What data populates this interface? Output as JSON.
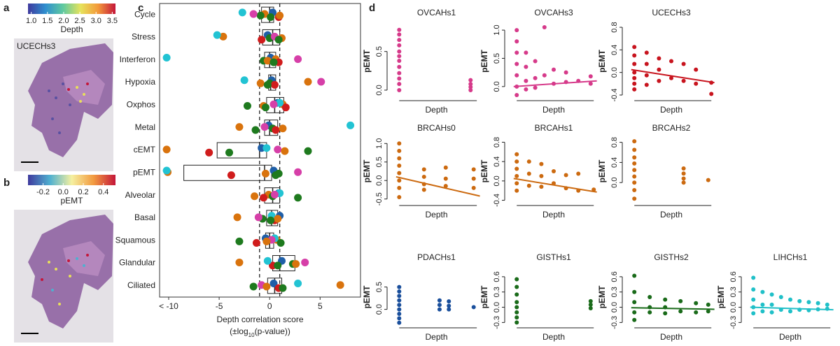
{
  "panel_labels": [
    "a",
    "b",
    "c",
    "d"
  ],
  "chart_data": [
    {
      "type": "colorbar",
      "title": "Depth",
      "image_label": "UCECHs3",
      "colors": [
        "#3f3a9e",
        "#2f8fcf",
        "#5fc9a0",
        "#e6e35c",
        "#f39a3a",
        "#c4163a"
      ],
      "xlim": [
        0.9,
        3.6
      ],
      "xticks": [
        {
          "value": 1,
          "label": "1.0"
        },
        1.5,
        {
          "value": 2,
          "label": "2.0"
        },
        2.5,
        {
          "value": 3,
          "label": "3.0"
        },
        3.5
      ]
    },
    {
      "type": "colorbar",
      "title": "pEMT",
      "colors": [
        "#3f3a9e",
        "#4fb0d0",
        "#f5f0a0",
        "#f29a40",
        "#c4163a"
      ],
      "xlim": [
        -0.35,
        0.52
      ],
      "xticks": [
        -0.2,
        {
          "value": 0,
          "label": "0.0"
        },
        0.2,
        0.4
      ]
    },
    {
      "type": "boxdot",
      "xlabel": "Depth correlation score",
      "xlabel_note": [
        "(±log",
        "10",
        "(p-value))"
      ],
      "categories": [
        "Cycle",
        "Stress",
        "Interferon",
        "Hypoxia",
        "Oxphos",
        "Metal",
        "cEMT",
        "pEMT",
        "Alveolar",
        "Basal",
        "Squamous",
        "Glandular",
        "Ciliated"
      ],
      "category_colors": [
        "#e8776e",
        "#d08c0c",
        "#c39a1b",
        "#98a61a",
        "#43a22a",
        "#1fae8a",
        "#1ab3b3",
        "#19a9de",
        "#29a0e0",
        "#8d93e0",
        "#c078e0",
        "#e060c0",
        "#e5609f"
      ],
      "xlim": [
        -10.9,
        9
      ],
      "xticks": [
        {
          "value": -10,
          "label": "< -10"
        },
        -5,
        0,
        5
      ],
      "ref_lines": [
        -1,
        1
      ],
      "boxes": [
        {
          "q1": -0.8,
          "median": 0,
          "q3": 0.4
        },
        {
          "q1": -0.7,
          "median": 0.3,
          "q3": 1.0
        },
        {
          "q1": -0.5,
          "median": 0,
          "q3": 0.6
        },
        {
          "q1": -0.1,
          "median": 0.1,
          "q3": 0.6
        },
        {
          "q1": -0.3,
          "median": 0.5,
          "q3": 1.4
        },
        {
          "q1": -0.5,
          "median": 0,
          "q3": 0.8
        },
        {
          "q1": -5.2,
          "median": -1.0,
          "q3": -0.3
        },
        {
          "q1": -8.5,
          "median": -0.5,
          "q3": 0.2
        },
        {
          "q1": -0.5,
          "median": 0.3,
          "q3": 1.0
        },
        {
          "q1": -0.3,
          "median": 0.2,
          "q3": 0.8
        },
        {
          "q1": -0.4,
          "median": 0,
          "q3": 0.4
        },
        {
          "q1": 0.3,
          "median": 1.0,
          "q3": 2.5
        },
        {
          "q1": -0.2,
          "median": 0.5,
          "q3": 1.2
        }
      ],
      "series": [
        {
          "color": "#1f5fa8",
          "values": [
            0.3,
            -0.2,
            0.1,
            0.2,
            0.8,
            -0.1,
            -0.8,
            0.4,
            0.9,
            1.0,
            -0.4,
            1.2,
            0.4
          ]
        },
        {
          "color": "#d9730d",
          "values": [
            -0.5,
            -4.6,
            0.6,
            3.8,
            1.3,
            -3.0,
            -10.2,
            -10.1,
            -0.1,
            -3.2,
            0.7,
            -3.0,
            7.0
          ]
        },
        {
          "color": "#1e7a1e",
          "values": [
            -0.9,
            0,
            -0.6,
            0,
            -2.2,
            0.3,
            3.8,
            0.9,
            0.3,
            -0.7,
            -3.0,
            2.3,
            -1.6
          ]
        },
        {
          "color": "#d01c1c",
          "values": [
            0.9,
            -0.8,
            0.9,
            0.5,
            1.6,
            0.6,
            -6.0,
            -3.8,
            -0.6,
            0.5,
            -1.3,
            0.3,
            0.9
          ]
        },
        {
          "color": "#22c3d3",
          "values": [
            -2.7,
            -5.2,
            -10.2,
            -2.5,
            1.0,
            8.0,
            -0.3,
            -10.2,
            1.0,
            0.2,
            0.5,
            -0.2,
            2.8
          ]
        },
        {
          "color": "#d63fa8",
          "values": [
            -1.6,
            0.5,
            2.8,
            5.1,
            0.4,
            -0.5,
            0.8,
            2.8,
            0.5,
            -1.1,
            0.2,
            3.5,
            -0.8
          ]
        },
        {
          "color": "#d9730d",
          "values": [
            1.0,
            1.2,
            -0.2,
            -0.9,
            -0.6,
            1.3,
            1.5,
            -0.4,
            -1.5,
            0.8,
            -0.3,
            2.6,
            -0.3
          ]
        },
        {
          "color": "#1e7a1e",
          "values": [
            0.1,
            0.9,
            0.4,
            -0.2,
            -0.4,
            -1.4,
            -4.0,
            0.6,
            2.8,
            0.1,
            1.1,
            0.8,
            1.3
          ]
        }
      ]
    },
    {
      "type": "scatter",
      "title": "OVCAHs1",
      "xlabel": "Depth",
      "ylabel": "pEMT",
      "color": "#d63a8a",
      "xlim": [
        0.7,
        3.7
      ],
      "ylim": [
        -0.1,
        0.85
      ],
      "yticks": [
        {
          "value": 0,
          "label": "0.0"
        },
        0.5
      ],
      "x": [
        1,
        1,
        1,
        1,
        1,
        1,
        1,
        1,
        1,
        1,
        1,
        1,
        3.3,
        3.3,
        3.3,
        3.3
      ],
      "y": [
        0.78,
        0.72,
        0.65,
        0.58,
        0.5,
        0.44,
        0.38,
        0.3,
        0.22,
        0.15,
        0.08,
        0.0,
        0.13,
        0.08,
        0.04,
        0.0
      ]
    },
    {
      "type": "scatter",
      "title": "OVCAHs3",
      "xlabel": "Depth",
      "ylabel": "pEMT",
      "color": "#d63a8a",
      "xlim": [
        0.7,
        3.7
      ],
      "ylim": [
        -0.2,
        1.1
      ],
      "yticks": [
        {
          "value": 0,
          "label": "0.0"
        },
        0.5,
        {
          "value": 1,
          "label": "1.0"
        }
      ],
      "x": [
        1,
        1,
        1,
        1,
        1,
        1,
        1,
        1.3,
        1.3,
        1.3,
        1.3,
        1.6,
        1.6,
        1.6,
        1.9,
        1.9,
        2.2,
        2.2,
        2.6,
        2.6,
        3.0,
        3.4,
        3.4
      ],
      "y": [
        1.0,
        0.8,
        0.6,
        0.4,
        0.2,
        0.0,
        -0.15,
        0.6,
        0.35,
        0.1,
        -0.05,
        0.45,
        0.15,
        -0.02,
        1.05,
        0.2,
        0.3,
        0.05,
        0.25,
        0.08,
        0.1,
        0.18,
        0.05
      ],
      "trend": {
        "x": [
          0.9,
          3.6
        ],
        "y": [
          0.0,
          0.1
        ]
      }
    },
    {
      "type": "scatter",
      "title": "UCECHs3",
      "xlabel": "Depth",
      "ylabel": "pEMT",
      "color": "#c8141e",
      "xlim": [
        0.7,
        3.7
      ],
      "ylim": [
        -0.45,
        0.85
      ],
      "yticks": [
        -0.4,
        {
          "value": 0,
          "label": "0.0"
        },
        0.4,
        0.8
      ],
      "x": [
        1,
        1,
        1,
        1,
        1,
        1,
        1,
        1.4,
        1.4,
        1.4,
        1.4,
        1.8,
        1.8,
        1.8,
        2.2,
        2.2,
        2.6,
        2.6,
        3.0,
        3.0,
        3.5,
        3.5
      ],
      "y": [
        0.45,
        0.3,
        0.15,
        0.0,
        -0.1,
        -0.2,
        -0.3,
        0.35,
        0.15,
        -0.05,
        -0.22,
        0.25,
        0.05,
        -0.15,
        0.2,
        -0.1,
        0.15,
        -0.15,
        0.05,
        -0.2,
        -0.18,
        -0.38
      ],
      "trend": {
        "x": [
          0.9,
          3.6
        ],
        "y": [
          0.05,
          -0.18
        ]
      }
    },
    {
      "type": "scatter",
      "title": "BRCAHs0",
      "xlabel": "Depth",
      "ylabel": "pEMT",
      "color": "#cc6a10",
      "xlim": [
        0.7,
        3.7
      ],
      "ylim": [
        -0.6,
        1.1
      ],
      "yticks": [
        -0.5,
        {
          "value": 0,
          "label": "0.0"
        },
        0.5,
        {
          "value": 1,
          "label": "1.0"
        }
      ],
      "x": [
        1,
        1,
        1,
        1,
        1,
        1,
        1,
        1,
        1.8,
        1.8,
        1.8,
        1.8,
        2.5,
        2.5,
        2.5,
        3.4,
        3.4,
        3.4
      ],
      "y": [
        1.0,
        0.8,
        0.6,
        0.4,
        0.2,
        0.0,
        -0.2,
        -0.45,
        0.3,
        0.1,
        -0.1,
        -0.25,
        0.35,
        0.05,
        -0.15,
        0.3,
        0.05,
        -0.2
      ],
      "trend": {
        "x": [
          0.9,
          3.6
        ],
        "y": [
          0.1,
          -0.42
        ]
      }
    },
    {
      "type": "scatter",
      "title": "BRCAHs1",
      "xlabel": "Depth",
      "ylabel": "pEMT",
      "color": "#cc6a10",
      "xlim": [
        0.7,
        3.7
      ],
      "ylim": [
        -0.45,
        0.85
      ],
      "yticks": [
        -0.4,
        {
          "value": 0,
          "label": "0.0"
        },
        0.4,
        0.8
      ],
      "x": [
        1,
        1,
        1,
        1,
        1,
        1,
        1.4,
        1.4,
        1.4,
        1.8,
        1.8,
        1.8,
        2.2,
        2.2,
        2.6,
        2.6,
        3.0,
        3.0,
        3.5
      ],
      "y": [
        0.55,
        0.4,
        0.25,
        0.1,
        -0.05,
        -0.2,
        0.4,
        0.15,
        -0.1,
        0.35,
        0.1,
        -0.12,
        0.2,
        -0.05,
        0.12,
        -0.15,
        0.15,
        -0.2,
        -0.18
      ],
      "trend": {
        "x": [
          0.9,
          3.6
        ],
        "y": [
          0.05,
          -0.23
        ]
      }
    },
    {
      "type": "scatter",
      "title": "BRCAHs2",
      "xlabel": "Depth",
      "ylabel": "pEMT",
      "color": "#cc6a10",
      "xlim": [
        0.7,
        3.7
      ],
      "ylim": [
        -0.4,
        0.85
      ],
      "yticks": [
        {
          "value": 0,
          "label": "0.0"
        },
        0.4,
        0.8
      ],
      "x": [
        1,
        1,
        1,
        1,
        1,
        1,
        1,
        1,
        1,
        2.6,
        2.6,
        2.6,
        2.6,
        3.4
      ],
      "y": [
        0.82,
        0.65,
        0.5,
        0.38,
        0.25,
        0.12,
        0.0,
        -0.15,
        -0.32,
        0.28,
        0.18,
        0.08,
        0.0,
        0.05
      ]
    },
    {
      "type": "scatter",
      "title": "PDACHs1",
      "xlabel": "Depth",
      "ylabel": "pEMT",
      "color": "#1a4f9c",
      "xlim": [
        0.7,
        3.7
      ],
      "ylim": [
        -0.35,
        0.9
      ],
      "yticks": [
        {
          "value": 0,
          "label": "0.0"
        },
        0.5
      ],
      "x": [
        1,
        1,
        1,
        1,
        1,
        1,
        1,
        1,
        1,
        2.3,
        2.3,
        2.3,
        2.6,
        2.6,
        2.6,
        3.4
      ],
      "y": [
        0.5,
        0.4,
        0.3,
        0.2,
        0.1,
        0.0,
        -0.1,
        -0.2,
        -0.3,
        0.2,
        0.1,
        0.0,
        0.18,
        0.08,
        0.0,
        0.05
      ]
    },
    {
      "type": "scatter",
      "title": "GISTHs1",
      "xlabel": "Depth",
      "ylabel": "pEMT",
      "color": "#1a6b1a",
      "xlim": [
        0.7,
        3.7
      ],
      "ylim": [
        -0.35,
        0.75
      ],
      "yticks": [
        -0.3,
        {
          "value": 0,
          "label": "0.0"
        },
        0.3,
        0.6
      ],
      "x": [
        1,
        1,
        1,
        1,
        1,
        1,
        1,
        1,
        3.4,
        3.4,
        3.4
      ],
      "y": [
        0.55,
        0.4,
        0.25,
        0.1,
        0.0,
        -0.1,
        -0.2,
        -0.3,
        0.12,
        0.05,
        -0.02
      ]
    },
    {
      "type": "scatter",
      "title": "GISTHs2",
      "xlabel": "Depth",
      "ylabel": "pEMT",
      "color": "#1a6b1a",
      "xlim": [
        0.7,
        3.7
      ],
      "ylim": [
        -0.35,
        0.75
      ],
      "yticks": [
        -0.3,
        {
          "value": 0,
          "label": "0.0"
        },
        0.3,
        0.6
      ],
      "x": [
        1,
        1,
        1,
        1,
        1,
        1.5,
        1.5,
        1.5,
        2.0,
        2.0,
        2.0,
        2.5,
        2.5,
        3.0,
        3.0,
        3.4,
        3.4
      ],
      "y": [
        0.62,
        0.3,
        0.1,
        -0.1,
        -0.25,
        0.2,
        0.0,
        -0.1,
        0.15,
        0.0,
        -0.12,
        0.12,
        -0.08,
        0.08,
        -0.1,
        0.05,
        -0.08
      ],
      "trend": {
        "x": [
          0.9,
          3.6
        ],
        "y": [
          -0.01,
          -0.04
        ]
      }
    },
    {
      "type": "scatter",
      "title": "LIHCHs1",
      "xlabel": "Depth",
      "ylabel": "pEMT",
      "color": "#20c0c8",
      "xlim": [
        0.7,
        3.7
      ],
      "ylim": [
        -0.35,
        0.75
      ],
      "yticks": [
        -0.3,
        {
          "value": 0,
          "label": "0.0"
        },
        0.3,
        0.6
      ],
      "x": [
        1,
        1,
        1,
        1,
        1,
        1.3,
        1.3,
        1.3,
        1.6,
        1.6,
        1.6,
        1.9,
        1.9,
        2.2,
        2.2,
        2.5,
        2.5,
        2.8,
        2.8,
        3.1,
        3.1,
        3.4,
        3.4
      ],
      "y": [
        0.58,
        0.35,
        0.15,
        0.0,
        -0.12,
        0.3,
        0.05,
        -0.08,
        0.25,
        0.05,
        -0.1,
        0.2,
        -0.05,
        0.15,
        -0.08,
        0.12,
        -0.05,
        0.1,
        -0.06,
        0.08,
        -0.04,
        0.05,
        -0.03
      ],
      "trend": {
        "x": [
          0.9,
          3.6
        ],
        "y": [
          0.0,
          -0.05
        ]
      }
    }
  ]
}
